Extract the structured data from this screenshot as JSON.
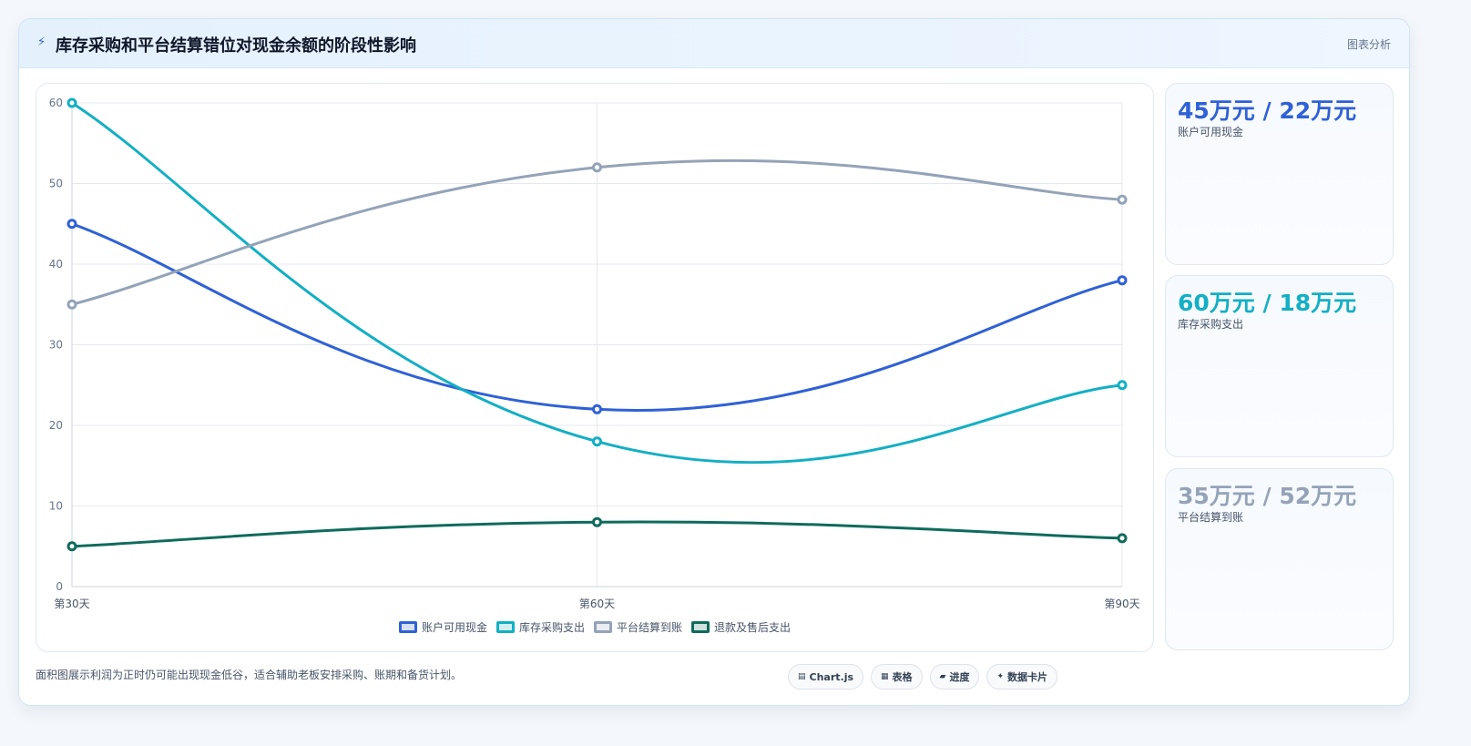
{
  "header": {
    "icon": "lightning-icon",
    "title": "库存采购和平台结算错位对现金余额的阶段性影响",
    "action": "图表分析"
  },
  "stats": [
    {
      "value": "45万元 / 22万元",
      "label": "账户可用现金",
      "color": "#2f61d6"
    },
    {
      "value": "60万元 / 18万元",
      "label": "库存采购支出",
      "color": "#13afc4"
    },
    {
      "value": "35万元 / 52万元",
      "label": "平台结算到账",
      "color": "#94a3b8"
    }
  ],
  "footnote": "面积图展示利润为正时仍可能出现现金低谷，适合辅助老板安排采购、账期和备货计划。",
  "chips": [
    {
      "icon": "chart-icon",
      "glyph": "▤",
      "label": "Chart.js"
    },
    {
      "icon": "table-icon",
      "glyph": "▦",
      "label": "表格"
    },
    {
      "icon": "progress-icon",
      "glyph": "▰",
      "label": "进度"
    },
    {
      "icon": "card-icon",
      "glyph": "✦",
      "label": "数据卡片"
    }
  ],
  "chart_data": {
    "type": "line",
    "categories": [
      "第30天",
      "第60天",
      "第90天"
    ],
    "ylim": [
      0,
      60
    ],
    "yticks": [
      0,
      10,
      20,
      30,
      40,
      50,
      60
    ],
    "grid": true,
    "legend": "bottom",
    "series": [
      {
        "name": "账户可用现金",
        "values": [
          45,
          22,
          38
        ],
        "color": "#2f61d6"
      },
      {
        "name": "库存采购支出",
        "values": [
          60,
          18,
          25
        ],
        "color": "#13afc4"
      },
      {
        "name": "平台结算到账",
        "values": [
          35,
          52,
          48
        ],
        "color": "#94a3b8"
      },
      {
        "name": "退款及售后支出",
        "values": [
          5,
          8,
          6
        ],
        "color": "#0f6b5c"
      }
    ]
  }
}
